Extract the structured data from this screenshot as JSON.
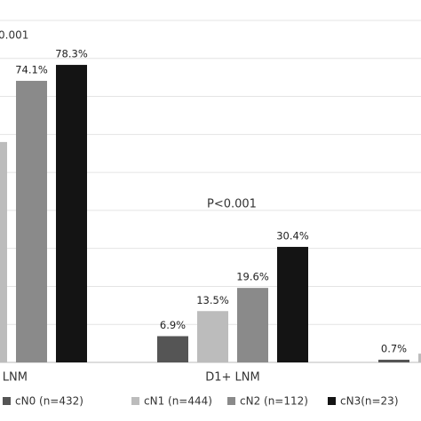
{
  "chart_data": {
    "type": "bar",
    "annotations": [
      "0.001",
      "P<0.001"
    ],
    "categories": [
      "l LNM",
      "D1+ LNM",
      null
    ],
    "series": [
      {
        "name": "cN0 (n=432)",
        "color": "#555555",
        "values": [
          null,
          6.9,
          0.7
        ],
        "value_labels": [
          null,
          "6.9%",
          "0.7%"
        ]
      },
      {
        "name": "cN1 (n=444)",
        "color": "#bcbcbc",
        "values": [
          58,
          13.5,
          2.3
        ],
        "value_labels": [
          null,
          "13.5%",
          null
        ]
      },
      {
        "name": "cN2 (n=112)",
        "color": "#8a8a8a",
        "values": [
          74.1,
          19.6,
          null
        ],
        "value_labels": [
          "74.1%",
          "19.6%",
          null
        ]
      },
      {
        "name": "cN3(n=23)",
        "color": "#141414",
        "values": [
          78.3,
          30.4,
          null
        ],
        "value_labels": [
          "78.3%",
          "30.4%",
          null
        ]
      }
    ],
    "ylim": [
      0,
      90
    ],
    "yticks": [
      0,
      10,
      20,
      30,
      40,
      50,
      60,
      70,
      80,
      90
    ],
    "grid": true
  }
}
